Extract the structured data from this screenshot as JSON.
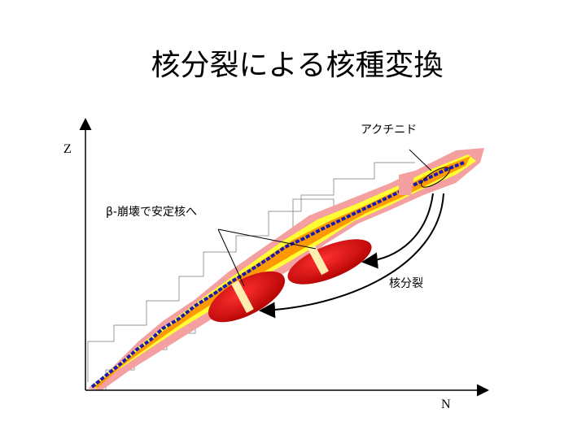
{
  "title": "核分裂による核種変換",
  "labels": {
    "actinide": "アクチニド",
    "z_axis": "Z",
    "beta_decay": "β-崩壊で安定核へ",
    "fission": "核分裂",
    "n_axis": "N"
  }
}
